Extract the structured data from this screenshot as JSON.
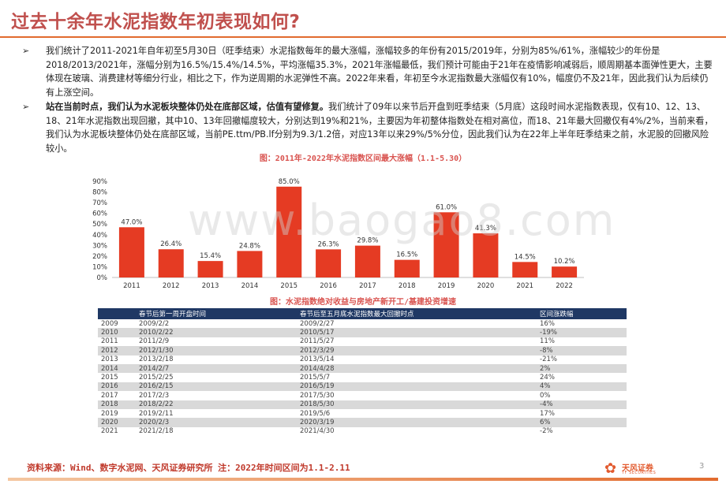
{
  "title": "过去十余年水泥指数年初表现如何?",
  "bullets": [
    {
      "mark": "➢",
      "bold": "",
      "text": "我们统计了2011-2021年自年初至5月30日（旺季结束）水泥指数每年的最大涨幅，涨幅较多的年份有2015/2019年，分别为85%/61%，涨幅较少的年份是2018/2013/2021年，涨幅分别为16.5%/15.4%/14.5%，平均涨幅35.3%，2021年涨幅最低，我们预计可能由于21年在疫情影响减弱后，顺周期基本面弹性更大，主要体现在玻璃、消费建材等细分行业，相比之下，作为逆周期的水泥弹性不高。2022年来看，年初至今水泥指数最大涨幅仅有10%，幅度仍不及21年，因此我们认为后续仍有上涨空间。"
    },
    {
      "mark": "➢",
      "bold": "站在当前时点，我们认为水泥板块整体仍处在底部区域，估值有望修复。",
      "text": "我们统计了09年以来节后开盘到旺季结束（5月底）这段时间水泥指数表现，仅有10、12、13、18、21年水泥指数出现回撤，其中10、13年回撤幅度较大，分别达到19%和21%，主要因为年初整体指数处在相对高位，而18、21年最大回撤仅有4%/2%，当前来看，我们认为水泥板块整体仍处在底部区域，当前PE.ttm/PB.lf分别为9.3/1.2倍，对应13年以来29%/5%分位，因此我们认为在22年上半年旺季结束之前，水泥股的回撤风险较小。"
    }
  ],
  "chart_caption": "图：2011年-2022年水泥指数区间最大涨幅（1.1-5.30）",
  "chart_data": {
    "type": "bar",
    "title": "图：2011年-2022年水泥指数区间最大涨幅（1.1-5.30）",
    "categories": [
      "2011",
      "2012",
      "2013",
      "2014",
      "2015",
      "2016",
      "2017",
      "2018",
      "2019",
      "2020",
      "2021",
      "2022"
    ],
    "values": [
      47.0,
      26.4,
      15.4,
      24.8,
      85.0,
      26.3,
      29.8,
      16.5,
      61.0,
      41.3,
      14.5,
      10.2
    ],
    "labels": [
      "47.0%",
      "26.4%",
      "15.4%",
      "24.8%",
      "85.0%",
      "26.3%",
      "29.8%",
      "16.5%",
      "61.0%",
      "41.3%",
      "14.5%",
      "10.2%"
    ],
    "yticks": [
      "0%",
      "10%",
      "20%",
      "30%",
      "40%",
      "50%",
      "60%",
      "70%",
      "80%",
      "90%"
    ],
    "ylim": [
      0,
      90
    ],
    "grid": false,
    "colors": {
      "bar": "#e53b23",
      "label": "#333333"
    }
  },
  "table_caption": "图：水泥指数绝对收益与房地产新开工/基建投资增速",
  "table": {
    "headers": [
      "",
      "春节后第一周开盘时间",
      "春节后至五月底水泥指数最大回撤时点",
      "区间涨跌幅"
    ],
    "rows": [
      [
        "2009",
        "2009/2/2",
        "2009/2/27",
        "16%"
      ],
      [
        "2010",
        "2010/2/22",
        "2010/5/17",
        "-19%"
      ],
      [
        "2011",
        "2011/2/9",
        "2011/5/27",
        "11%"
      ],
      [
        "2012",
        "2012/1/30",
        "2012/3/29",
        "-8%"
      ],
      [
        "2013",
        "2013/2/18",
        "2013/5/14",
        "-21%"
      ],
      [
        "2014",
        "2014/2/7",
        "2014/4/28",
        "2%"
      ],
      [
        "2015",
        "2015/2/25",
        "2015/5/7",
        "24%"
      ],
      [
        "2016",
        "2016/2/15",
        "2016/5/19",
        "4%"
      ],
      [
        "2017",
        "2017/2/3",
        "2017/5/30",
        "0%"
      ],
      [
        "2018",
        "2018/2/22",
        "2018/5/30",
        "-4%"
      ],
      [
        "2019",
        "2019/2/11",
        "2019/5/6",
        "17%"
      ],
      [
        "2020",
        "2020/2/3",
        "2020/3/19",
        "6%"
      ],
      [
        "2021",
        "2021/2/18",
        "2021/4/30",
        "-2%"
      ]
    ]
  },
  "footer": {
    "source": "资料来源：Wind、数字水泥网、天风证券研究所   注：2022年时间区间为1.1-2.11",
    "logo_name": "天风证券",
    "logo_sub": "TF SECURITIES",
    "page": "3"
  },
  "watermark": "www.baogao8.com"
}
